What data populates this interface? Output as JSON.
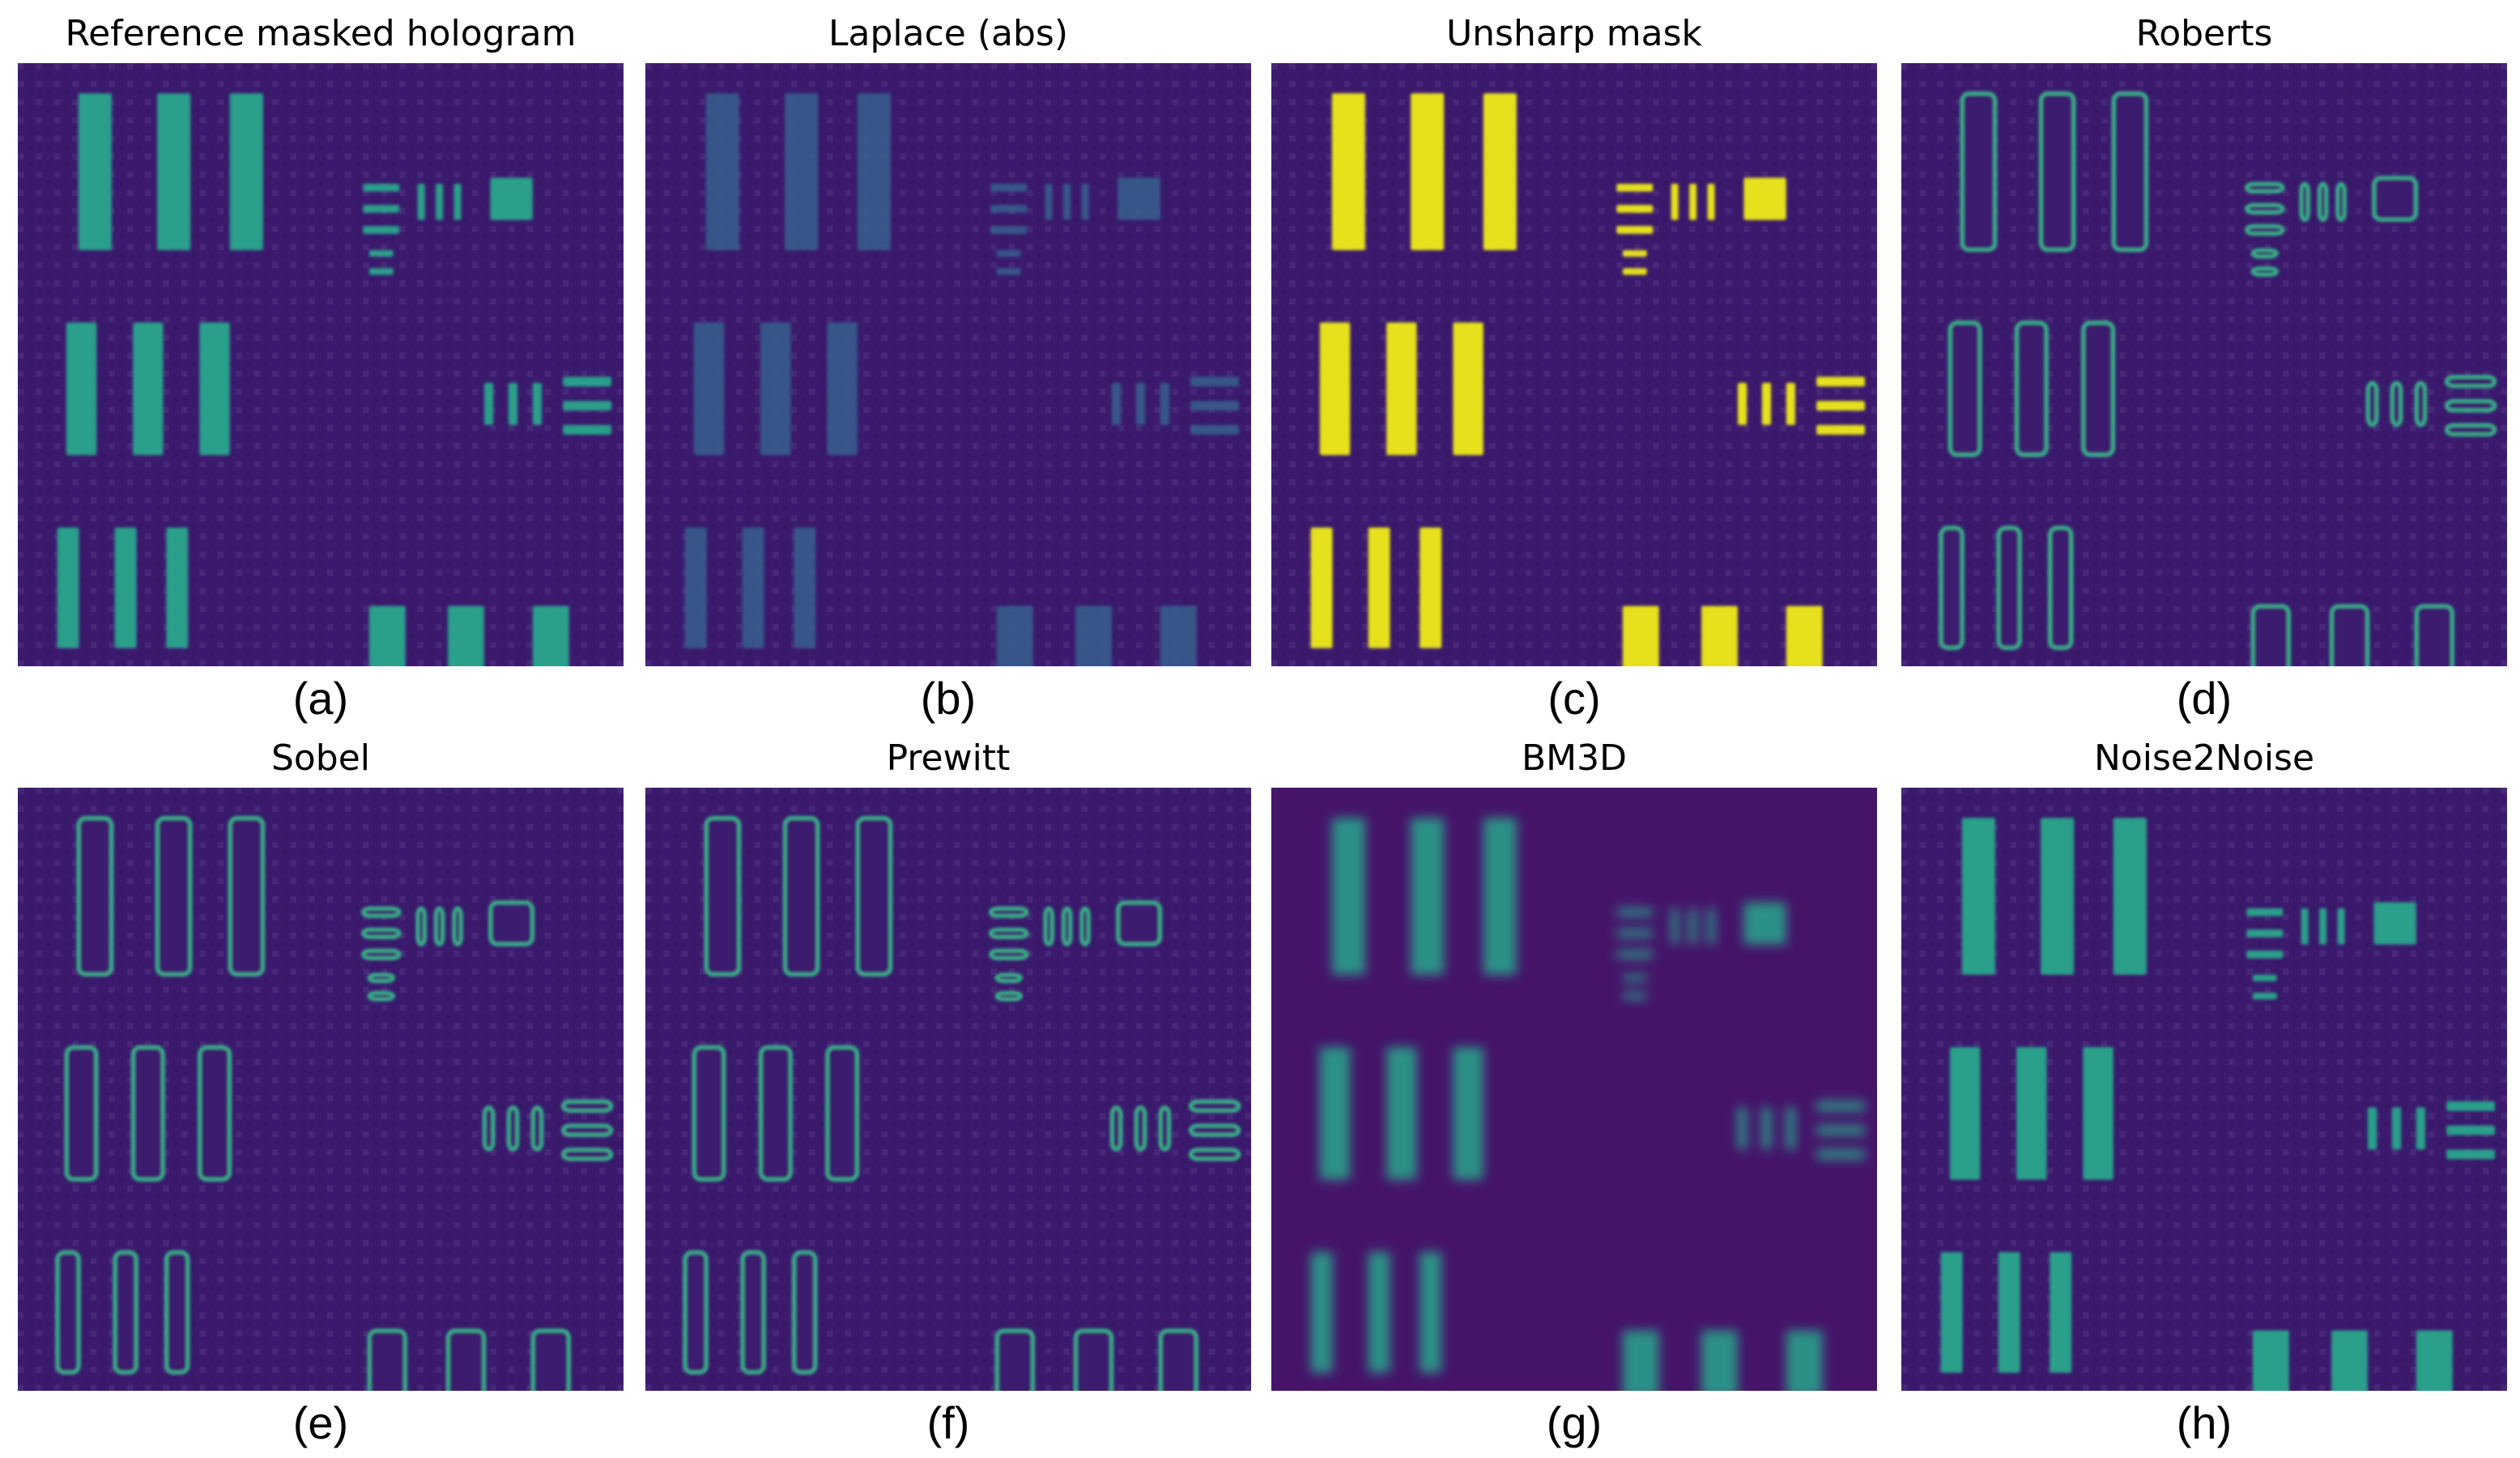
{
  "figure": {
    "panels": [
      {
        "title": "Reference masked hologram",
        "label": "(a)",
        "style": "plain"
      },
      {
        "title": "Laplace (abs)",
        "label": "(b)",
        "style": "laplace"
      },
      {
        "title": "Unsharp mask",
        "label": "(c)",
        "style": "unsharp"
      },
      {
        "title": "Roberts",
        "label": "(d)",
        "style": "edge"
      },
      {
        "title": "Sobel",
        "label": "(e)",
        "style": "edge"
      },
      {
        "title": "Prewitt",
        "label": "(f)",
        "style": "edge"
      },
      {
        "title": "BM3D",
        "label": "(g)",
        "style": "smooth"
      },
      {
        "title": "Noise2Noise",
        "label": "(h)",
        "style": "plain"
      }
    ],
    "colors": {
      "background": "#3b1a6e",
      "background_smooth": "#451469",
      "bar_plain": "#2a9f8a",
      "bar_bright": "#e6e11a",
      "bar_dim": "#355f8d",
      "edge": "#38b48a"
    }
  }
}
